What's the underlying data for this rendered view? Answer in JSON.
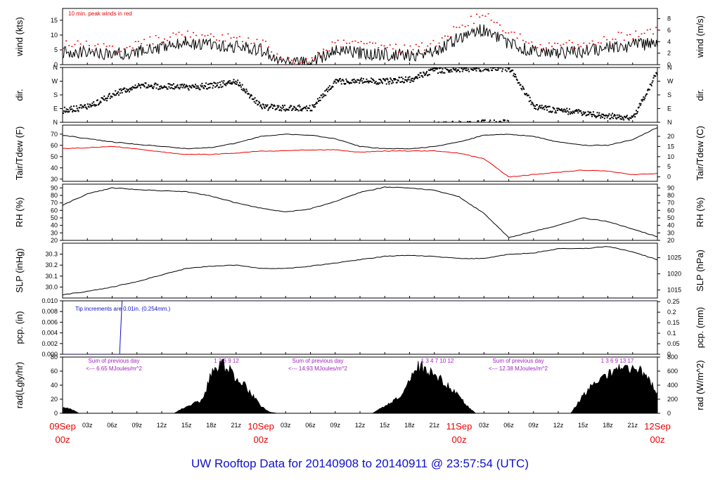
{
  "page_title": "UW Rooftop Data for 20140908  to  20140911 @ 23:57:54  (UTC)",
  "colors": {
    "text": "#000000",
    "red": "#ee0000",
    "blue": "#1010cc",
    "purple": "#a020c0"
  },
  "time_axis": {
    "tick_labels": [
      "03z",
      "06z",
      "09z",
      "12z",
      "15z",
      "18z",
      "21z",
      "03z",
      "06z",
      "09z",
      "12z",
      "15z",
      "18z",
      "21z",
      "03z",
      "06z",
      "09z",
      "12z",
      "15z",
      "18z",
      "21z"
    ],
    "date_labels": [
      {
        "day": "09Sep",
        "hour": "00z"
      },
      {
        "day": "10Sep",
        "hour": "00z"
      },
      {
        "day": "11Sep",
        "hour": "00z"
      },
      {
        "day": "12Sep",
        "hour": "00z"
      }
    ]
  },
  "chart_data": [
    {
      "type": "line",
      "id": "wind",
      "ylabel_left": "wind (kts)",
      "ylabel_right": "wind (m/s)",
      "ylim": [
        0,
        19
      ],
      "left_ticks": [
        "0",
        "5",
        "10",
        "15"
      ],
      "right_ticks": [
        "0",
        "2",
        "4",
        "6",
        "8"
      ],
      "annotation": "10 min. peak winds in red",
      "series": [
        {
          "color": "#000000",
          "x": [
            0,
            3,
            6,
            9,
            12,
            15,
            18,
            21,
            24,
            27,
            30,
            33,
            36,
            39,
            42,
            45,
            48,
            51,
            54,
            57,
            60,
            63,
            66,
            69,
            72
          ],
          "values": [
            4.5,
            4,
            3,
            4.5,
            6,
            7.5,
            6.5,
            6,
            5,
            0.5,
            0.5,
            4.5,
            4,
            3.5,
            3,
            4,
            9,
            12,
            7,
            4.5,
            4,
            4.5,
            5.5,
            6.5,
            7.5
          ]
        },
        {
          "color": "#ee0000",
          "x": [
            0,
            3,
            6,
            9,
            12,
            15,
            18,
            21,
            24,
            27,
            30,
            33,
            36,
            39,
            42,
            45,
            48,
            51,
            54,
            57,
            60,
            63,
            66,
            69,
            72
          ],
          "values": [
            7,
            6.5,
            5,
            7,
            9,
            10,
            9,
            9,
            7.5,
            1,
            1,
            7,
            6.5,
            6,
            5,
            7,
            13,
            17,
            11,
            7,
            6.5,
            7,
            9,
            10,
            12
          ]
        }
      ]
    },
    {
      "type": "scatter",
      "id": "dir",
      "ylabel_left": "dir.",
      "ylabel_right": "dir.",
      "left_ticks": [
        "N",
        "E",
        "S",
        "W",
        "N"
      ],
      "right_ticks": [
        "N",
        "E",
        "S",
        "W",
        "N"
      ],
      "x": [
        0,
        3,
        6,
        9,
        12,
        15,
        18,
        21,
        24,
        27,
        30,
        33,
        36,
        39,
        42,
        45,
        48,
        51,
        54,
        57,
        60,
        63,
        66,
        69,
        72
      ],
      "values": [
        80,
        100,
        180,
        240,
        235,
        230,
        240,
        265,
        100,
        95,
        90,
        270,
        270,
        270,
        280,
        340,
        350,
        355,
        355,
        100,
        80,
        60,
        40,
        30,
        340
      ]
    },
    {
      "type": "line",
      "id": "temp",
      "ylabel_left": "Tair/Tdew (F)",
      "ylabel_right": "Tair/Tdew (C)",
      "ylim": [
        28,
        78
      ],
      "left_ticks": [
        "30",
        "40",
        "50",
        "60",
        "70"
      ],
      "right_ticks": [
        "0",
        "5",
        "10",
        "15",
        "20"
      ],
      "series": [
        {
          "name": "Tair",
          "color": "#000000",
          "x": [
            0,
            3,
            6,
            9,
            12,
            15,
            18,
            21,
            24,
            27,
            30,
            33,
            36,
            39,
            42,
            45,
            48,
            51,
            54,
            57,
            60,
            63,
            66,
            69,
            72
          ],
          "values": [
            69,
            66,
            63,
            61,
            59,
            57,
            58,
            62,
            68,
            70,
            69,
            66,
            59,
            57,
            57,
            59,
            63,
            69,
            70,
            68,
            63,
            60,
            60,
            65,
            76
          ]
        },
        {
          "name": "Tdew",
          "color": "#ee0000",
          "x": [
            0,
            3,
            6,
            9,
            12,
            15,
            18,
            21,
            24,
            27,
            30,
            33,
            36,
            39,
            42,
            45,
            48,
            51,
            54,
            57,
            60,
            63,
            66,
            69,
            72
          ],
          "values": [
            57,
            58,
            59,
            57,
            54,
            52,
            52,
            53,
            55,
            55,
            56,
            56,
            54,
            55,
            55,
            55,
            53,
            48,
            32,
            34,
            36,
            38,
            37,
            34,
            35
          ]
        }
      ]
    },
    {
      "type": "line",
      "id": "rh",
      "ylabel_left": "RH (%)",
      "ylabel_right": "RH (%)",
      "ylim": [
        20,
        95
      ],
      "left_ticks": [
        "20",
        "30",
        "40",
        "50",
        "60",
        "70",
        "80",
        "90"
      ],
      "right_ticks": [
        "20",
        "30",
        "40",
        "50",
        "60",
        "70",
        "80",
        "90"
      ],
      "series": [
        {
          "color": "#000000",
          "x": [
            0,
            3,
            6,
            9,
            12,
            15,
            18,
            21,
            24,
            27,
            30,
            33,
            36,
            39,
            42,
            45,
            48,
            51,
            54,
            57,
            60,
            63,
            66,
            69,
            72
          ],
          "values": [
            67,
            82,
            90,
            88,
            86,
            85,
            79,
            70,
            63,
            58,
            62,
            72,
            84,
            91,
            90,
            87,
            78,
            56,
            24,
            32,
            40,
            50,
            45,
            35,
            25
          ]
        }
      ]
    },
    {
      "type": "line",
      "id": "slp",
      "ylabel_left": "SLP (inHg)",
      "ylabel_right": "SLP (hPa)",
      "ylim": [
        29.9,
        30.4
      ],
      "left_ticks": [
        "30.0",
        "30.1",
        "30.2",
        "30.3"
      ],
      "right_ticks": [
        "1015",
        "1020",
        "1025"
      ],
      "series": [
        {
          "color": "#000000",
          "x": [
            0,
            3,
            6,
            9,
            12,
            15,
            18,
            21,
            24,
            27,
            30,
            33,
            36,
            39,
            42,
            45,
            48,
            51,
            54,
            57,
            60,
            63,
            66,
            69,
            72
          ],
          "values": [
            29.93,
            29.96,
            30.0,
            30.05,
            30.11,
            30.17,
            30.19,
            30.2,
            30.17,
            30.17,
            30.19,
            30.22,
            30.25,
            30.28,
            30.29,
            30.28,
            30.26,
            30.26,
            30.3,
            30.31,
            30.35,
            30.35,
            30.37,
            30.32,
            30.25
          ]
        }
      ]
    },
    {
      "type": "line",
      "id": "pcp",
      "ylabel_left": "pcp. (in)",
      "ylabel_right": "pcp. (mm)",
      "ylim": [
        0,
        0.01
      ],
      "left_ticks": [
        "0.000",
        "0.002",
        "0.004",
        "0.006",
        "0.008",
        "0.010"
      ],
      "right_ticks": [
        "0",
        "0.05",
        "0.1",
        "0.15",
        "0.2",
        "0.25"
      ],
      "annotation": "Tip increments are 0.01in. (0.254mm.)",
      "series": [
        {
          "color": "#1010cc",
          "x": [
            0,
            7,
            7.05,
            72
          ],
          "values": [
            0,
            0,
            0.01,
            0.01
          ]
        }
      ]
    },
    {
      "type": "area",
      "id": "rad",
      "ylabel_left": "rad(Lgly/hr)",
      "ylabel_right": "rad (W/m^2)",
      "ylim": [
        0,
        80
      ],
      "left_ticks": [
        "0",
        "20",
        "40",
        "60",
        "80"
      ],
      "right_ticks": [
        "0",
        "200",
        "400",
        "600",
        "800"
      ],
      "series": [
        {
          "color": "#000000",
          "x": [
            0,
            1,
            2,
            13.5,
            15,
            17,
            18,
            19,
            20,
            21,
            22,
            23,
            24,
            25,
            26,
            37.5,
            39,
            41,
            42,
            43,
            44,
            45,
            46,
            47,
            48,
            49,
            50,
            61.5,
            63,
            65,
            67,
            68,
            69,
            70,
            71,
            72
          ],
          "values": [
            8,
            6,
            0,
            0,
            10,
            20,
            55,
            70,
            65,
            50,
            40,
            25,
            10,
            2,
            0,
            0,
            10,
            25,
            45,
            65,
            65,
            55,
            45,
            35,
            25,
            10,
            0,
            0,
            25,
            50,
            60,
            64,
            64,
            60,
            48,
            28
          ]
        }
      ],
      "daily_sums": [
        {
          "title": "Sum of previous day",
          "value": "<--- 6.65 MJoules/m^2",
          "hours": "1   3  6  9  12"
        },
        {
          "title": "Sum of previous day",
          "value": "<--- 14.93 MJoules/m^2",
          "hours": "1   3  4   7  10   12"
        },
        {
          "title": "Sum of previous day",
          "value": "<--- 12.38 MJoules/m^2",
          "hours": "1   3  6  9  13  17"
        }
      ]
    }
  ]
}
